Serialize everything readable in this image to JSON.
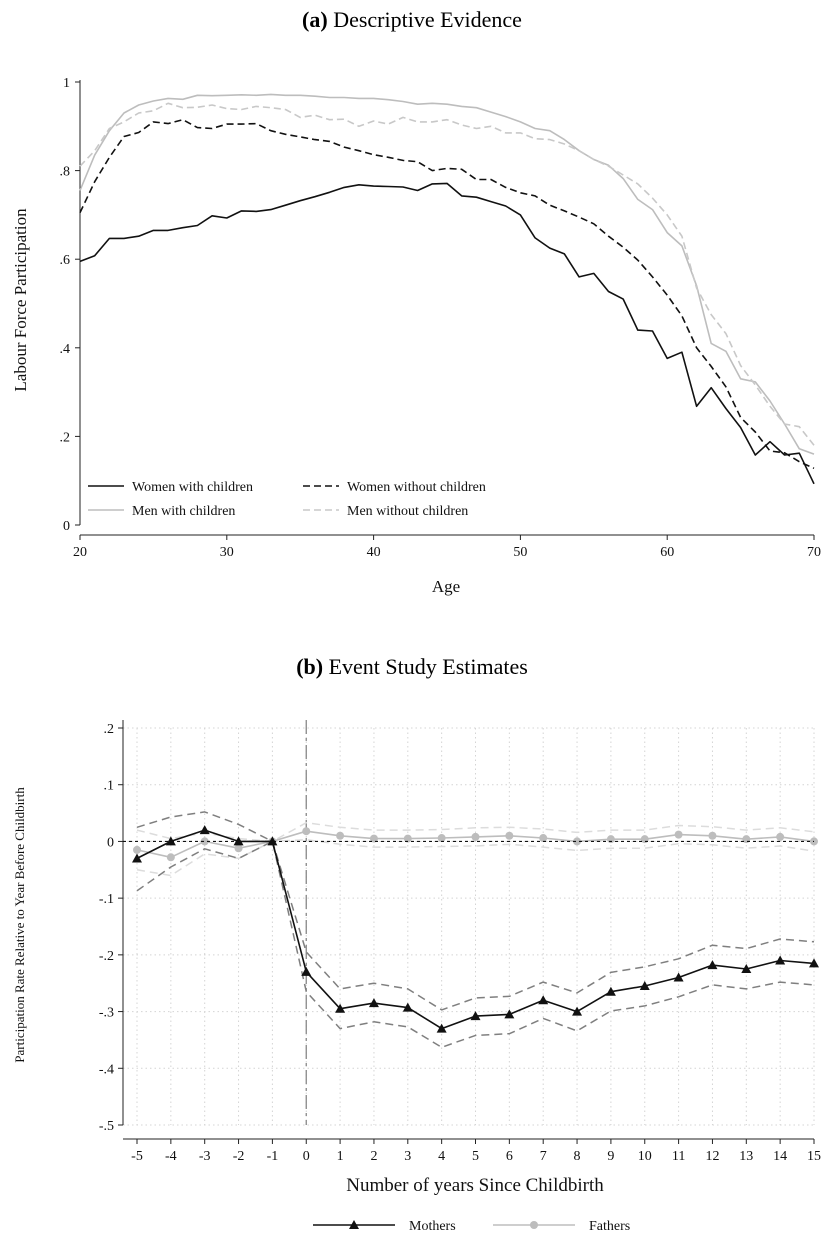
{
  "chart_data": [
    {
      "type": "line",
      "title_prefix": "(a)",
      "title": "Descriptive Evidence",
      "xlabel": "Age",
      "ylabel": "Labour Force Participation",
      "xlim": [
        20,
        70
      ],
      "ylim": [
        0,
        1
      ],
      "xticks": [
        "20",
        "30",
        "40",
        "50",
        "60",
        "70"
      ],
      "yticks": [
        "0",
        ".2",
        ".4",
        ".6",
        ".8",
        "1"
      ],
      "grid": false,
      "legend_position": "bottom-left",
      "x": [
        20,
        21,
        22,
        23,
        24,
        25,
        26,
        27,
        28,
        29,
        30,
        31,
        32,
        33,
        34,
        35,
        36,
        37,
        38,
        39,
        40,
        41,
        42,
        43,
        44,
        45,
        46,
        47,
        48,
        49,
        50,
        51,
        52,
        53,
        54,
        55,
        56,
        57,
        58,
        59,
        60,
        61,
        62,
        63,
        64,
        65,
        66,
        67,
        68,
        69,
        70
      ],
      "series": [
        {
          "name": "Women with children",
          "color": "#111111",
          "dash": "solid",
          "values": [
            0.595,
            0.608,
            0.647,
            0.647,
            0.652,
            0.665,
            0.665,
            0.671,
            0.676,
            0.698,
            0.693,
            0.709,
            0.708,
            0.712,
            0.722,
            0.732,
            0.741,
            0.751,
            0.762,
            0.768,
            0.765,
            0.764,
            0.763,
            0.755,
            0.77,
            0.771,
            0.743,
            0.74,
            0.73,
            0.72,
            0.7,
            0.648,
            0.625,
            0.612,
            0.56,
            0.568,
            0.527,
            0.51,
            0.44,
            0.438,
            0.376,
            0.39,
            0.268,
            0.31,
            0.263,
            0.22,
            0.158,
            0.188,
            0.158,
            0.162,
            0.093
          ]
        },
        {
          "name": "Women without children",
          "color": "#111111",
          "dash": "dashed",
          "values": [
            0.705,
            0.775,
            0.83,
            0.877,
            0.886,
            0.91,
            0.906,
            0.915,
            0.897,
            0.895,
            0.905,
            0.905,
            0.906,
            0.89,
            0.882,
            0.876,
            0.87,
            0.866,
            0.853,
            0.845,
            0.836,
            0.83,
            0.823,
            0.82,
            0.8,
            0.805,
            0.803,
            0.78,
            0.78,
            0.762,
            0.75,
            0.743,
            0.722,
            0.709,
            0.695,
            0.68,
            0.652,
            0.627,
            0.598,
            0.56,
            0.519,
            0.472,
            0.4,
            0.358,
            0.312,
            0.243,
            0.21,
            0.167,
            0.163,
            0.143,
            0.128
          ]
        },
        {
          "name": "Men with children",
          "color": "#bdbdbd",
          "dash": "solid",
          "values": [
            0.755,
            0.835,
            0.89,
            0.93,
            0.948,
            0.957,
            0.963,
            0.961,
            0.97,
            0.969,
            0.97,
            0.971,
            0.97,
            0.972,
            0.97,
            0.97,
            0.968,
            0.965,
            0.965,
            0.963,
            0.963,
            0.96,
            0.956,
            0.95,
            0.952,
            0.95,
            0.945,
            0.942,
            0.932,
            0.922,
            0.91,
            0.895,
            0.89,
            0.87,
            0.845,
            0.825,
            0.812,
            0.782,
            0.735,
            0.712,
            0.66,
            0.63,
            0.54,
            0.41,
            0.392,
            0.33,
            0.323,
            0.28,
            0.228,
            0.172,
            0.16
          ]
        },
        {
          "name": "Men without children",
          "color": "#c8c8c8",
          "dash": "dashed",
          "values": [
            0.81,
            0.845,
            0.895,
            0.91,
            0.93,
            0.935,
            0.952,
            0.942,
            0.943,
            0.948,
            0.94,
            0.938,
            0.945,
            0.942,
            0.938,
            0.92,
            0.925,
            0.915,
            0.916,
            0.9,
            0.912,
            0.905,
            0.92,
            0.91,
            0.91,
            0.915,
            0.903,
            0.895,
            0.9,
            0.885,
            0.885,
            0.872,
            0.87,
            0.86,
            0.845,
            0.825,
            0.81,
            0.79,
            0.77,
            0.738,
            0.7,
            0.652,
            0.535,
            0.475,
            0.432,
            0.36,
            0.316,
            0.268,
            0.228,
            0.222,
            0.18
          ]
        }
      ]
    },
    {
      "type": "line",
      "title_prefix": "(b)",
      "title": "Event Study Estimates",
      "xlabel": "Number of years Since Childbirth",
      "ylabel": "Participation Rate Relative to Year Before Childbirth",
      "xlim": [
        -5,
        15
      ],
      "ylim": [
        -0.5,
        0.2
      ],
      "xticks": [
        "-5",
        "-4",
        "-3",
        "-2",
        "-1",
        "0",
        "1",
        "2",
        "3",
        "4",
        "5",
        "6",
        "7",
        "8",
        "9",
        "10",
        "11",
        "12",
        "13",
        "14",
        "15"
      ],
      "yticks": [
        "-.5",
        "-.4",
        "-.3",
        "-.2",
        "-.1",
        "0",
        ".1",
        ".2"
      ],
      "grid": true,
      "reference_line_x": 0,
      "reference_line_y": 0,
      "legend_position": "bottom-center",
      "x": [
        -5,
        -4,
        -3,
        -2,
        -1,
        0,
        1,
        2,
        3,
        4,
        5,
        6,
        7,
        8,
        9,
        10,
        11,
        12,
        13,
        14,
        15
      ],
      "series": [
        {
          "name": "Mothers",
          "color": "#111111",
          "marker": "triangle",
          "values": [
            -0.03,
            0.0,
            0.02,
            0.0,
            0.0,
            -0.23,
            -0.295,
            -0.285,
            -0.293,
            -0.33,
            -0.308,
            -0.305,
            -0.28,
            -0.3,
            -0.265,
            -0.255,
            -0.24,
            -0.218,
            -0.225,
            -0.21,
            -0.215
          ],
          "ci_upper": [
            0.025,
            0.043,
            0.052,
            0.03,
            0.0,
            -0.195,
            -0.26,
            -0.25,
            -0.26,
            -0.297,
            -0.276,
            -0.273,
            -0.248,
            -0.267,
            -0.231,
            -0.221,
            -0.207,
            -0.183,
            -0.189,
            -0.172,
            -0.177
          ],
          "ci_lower": [
            -0.087,
            -0.045,
            -0.013,
            -0.03,
            0.0,
            -0.265,
            -0.33,
            -0.318,
            -0.327,
            -0.363,
            -0.342,
            -0.339,
            -0.312,
            -0.334,
            -0.299,
            -0.29,
            -0.274,
            -0.253,
            -0.26,
            -0.248,
            -0.253
          ]
        },
        {
          "name": "Fathers",
          "color": "#bdbdbd",
          "marker": "circle",
          "values": [
            -0.015,
            -0.028,
            0.0,
            -0.012,
            0.0,
            0.018,
            0.01,
            0.005,
            0.005,
            0.006,
            0.008,
            0.01,
            0.006,
            0.0,
            0.004,
            0.004,
            0.012,
            0.01,
            0.004,
            0.008,
            0.0
          ],
          "ci_upper": [
            0.02,
            0.005,
            0.015,
            0.005,
            0.0,
            0.033,
            0.025,
            0.02,
            0.02,
            0.021,
            0.024,
            0.025,
            0.022,
            0.016,
            0.02,
            0.02,
            0.028,
            0.026,
            0.02,
            0.024,
            0.017
          ],
          "ci_lower": [
            -0.05,
            -0.06,
            -0.022,
            -0.03,
            0.0,
            0.003,
            -0.005,
            -0.01,
            -0.01,
            -0.009,
            -0.008,
            -0.005,
            -0.01,
            -0.016,
            -0.012,
            -0.012,
            -0.004,
            -0.006,
            -0.012,
            -0.008,
            -0.017
          ]
        }
      ]
    }
  ]
}
